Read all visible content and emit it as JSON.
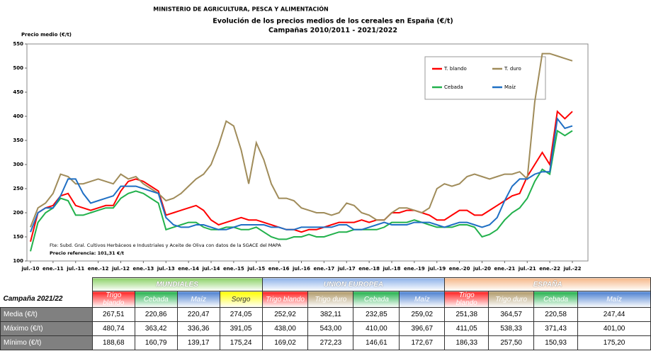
{
  "header": "MINISTERIO DE AGRICULTURA, PESCA Y ALIMENTACIÓN",
  "chart_data": {
    "type": "line",
    "title": "Evolución de los precios medios de los cereales en España (€/t)",
    "subtitle": "Campañas 2010/2011 - 2021/2022",
    "y_label": "Precio medio (€/t)",
    "annotations": [
      "Fte: Subd. Gral. Cultivos Herbáceos e Industriales y Aceite de Oliva con datos de la SGACE del MAPA",
      "Precio referencia: 101,31 €/t"
    ],
    "categories": [
      "jul.-10",
      null,
      null,
      "ene.-11",
      null,
      null,
      "jul.-11",
      null,
      null,
      "ene.-12",
      null,
      null,
      "jul.-12",
      null,
      null,
      "ene.-13",
      null,
      null,
      "jul.-13",
      null,
      null,
      "ene.-14",
      null,
      null,
      "jul.-14",
      null,
      null,
      "ene.-15",
      null,
      null,
      "jul.-15",
      null,
      null,
      "ene.-16",
      null,
      null,
      "jul.-16",
      null,
      null,
      "ene.-17",
      null,
      null,
      "jul.-17",
      null,
      null,
      "ene.-18",
      null,
      null,
      "jul.-18",
      null,
      null,
      "ene.-19",
      null,
      null,
      "jul.-19",
      null,
      null,
      "ene.-20",
      null,
      null,
      "jul.-20",
      null,
      null,
      "ene.-21",
      null,
      null,
      "jul.-21",
      null,
      null,
      "ene.-22",
      null,
      null,
      "jul.-22"
    ],
    "series": [
      {
        "name": "T. blando",
        "color": "#ff0000",
        "values": [
          140,
          200,
          210,
          215,
          235,
          240,
          215,
          210,
          205,
          210,
          215,
          215,
          245,
          265,
          270,
          265,
          255,
          245,
          195,
          200,
          205,
          210,
          215,
          205,
          185,
          175,
          180,
          185,
          190,
          185,
          185,
          180,
          175,
          170,
          165,
          165,
          160,
          165,
          165,
          170,
          175,
          180,
          180,
          180,
          185,
          180,
          185,
          185,
          200,
          200,
          205,
          205,
          200,
          195,
          185,
          185,
          195,
          205,
          205,
          195,
          195,
          205,
          215,
          225,
          235,
          240,
          275,
          300,
          325,
          300,
          410,
          395,
          410
        ]
      },
      {
        "name": "T. duro",
        "color": "#a08c5a",
        "values": [
          170,
          210,
          220,
          240,
          280,
          275,
          260,
          260,
          265,
          270,
          265,
          260,
          280,
          270,
          275,
          260,
          250,
          240,
          225,
          230,
          240,
          255,
          270,
          280,
          300,
          340,
          390,
          380,
          330,
          260,
          345,
          310,
          260,
          230,
          230,
          225,
          210,
          205,
          200,
          200,
          195,
          200,
          220,
          215,
          200,
          195,
          185,
          185,
          200,
          210,
          210,
          205,
          200,
          210,
          250,
          260,
          255,
          260,
          275,
          280,
          275,
          270,
          275,
          280,
          280,
          285,
          270,
          430,
          530,
          530,
          525,
          520,
          515
        ]
      },
      {
        "name": "Cebada",
        "color": "#22b14c",
        "values": [
          120,
          180,
          200,
          210,
          230,
          225,
          195,
          195,
          200,
          205,
          210,
          210,
          230,
          240,
          245,
          240,
          230,
          220,
          165,
          170,
          175,
          180,
          180,
          170,
          165,
          165,
          170,
          170,
          165,
          165,
          170,
          160,
          150,
          145,
          145,
          150,
          150,
          155,
          150,
          150,
          155,
          160,
          160,
          165,
          165,
          165,
          165,
          170,
          180,
          180,
          180,
          185,
          180,
          175,
          170,
          170,
          170,
          175,
          175,
          170,
          150,
          155,
          165,
          185,
          200,
          210,
          230,
          265,
          290,
          280,
          370,
          360,
          370
        ]
      },
      {
        "name": "Maíz",
        "color": "#1f6fc4",
        "values": [
          160,
          200,
          210,
          210,
          235,
          270,
          270,
          240,
          220,
          225,
          230,
          235,
          255,
          255,
          255,
          250,
          245,
          240,
          190,
          175,
          170,
          170,
          175,
          175,
          170,
          165,
          165,
          170,
          175,
          175,
          175,
          175,
          170,
          170,
          165,
          165,
          170,
          170,
          170,
          170,
          170,
          175,
          175,
          165,
          165,
          170,
          175,
          180,
          175,
          175,
          175,
          180,
          180,
          180,
          175,
          170,
          175,
          180,
          180,
          175,
          170,
          175,
          190,
          225,
          255,
          270,
          270,
          280,
          285,
          285,
          395,
          375,
          380
        ]
      }
    ],
    "ylim": [
      100,
      550
    ],
    "yticks": [
      100,
      150,
      200,
      250,
      300,
      350,
      400,
      450,
      500,
      550
    ],
    "legend": "upper right"
  },
  "table": {
    "groups": [
      "MUNDIALES",
      "UNION EUROPEA",
      "ESPAÑA"
    ],
    "corner": "Campaña 2021/22",
    "columns": [
      "Trigo blando",
      "Cebada",
      "Maíz",
      "Sorgo",
      "Trigo blando",
      "Trigo duro",
      "Cebada",
      "Maíz",
      "Trigo blando",
      "Trigo duro",
      "Cebada",
      "Maíz"
    ],
    "column_colors": [
      "#ff2020",
      "#22b14c",
      "#4a7fd0",
      "#ffff00",
      "#ff2020",
      "#b09a6a",
      "#22b14c",
      "#4a7fd0",
      "#ff2020",
      "#b09a6a",
      "#22b14c",
      "#4a7fd0"
    ],
    "group_colors": [
      "#8ed36a",
      "#8fb3ea",
      "#f6b98a"
    ],
    "rows": [
      {
        "label": "Media (€/t)",
        "cells": [
          "267,51",
          "220,86",
          "220,47",
          "274,05",
          "252,92",
          "382,11",
          "232,85",
          "259,02",
          "251,38",
          "364,57",
          "220,58",
          "247,44"
        ]
      },
      {
        "label": "Máximo (€/t)",
        "cells": [
          "480,74",
          "363,42",
          "336,36",
          "391,05",
          "438,00",
          "543,00",
          "410,00",
          "396,67",
          "411,05",
          "538,33",
          "371,43",
          "401,00"
        ]
      },
      {
        "label": "Mínimo (€/t)",
        "cells": [
          "188,68",
          "160,79",
          "139,17",
          "175,24",
          "169,02",
          "272,23",
          "146,61",
          "172,67",
          "186,33",
          "257,50",
          "150,93",
          "175,20"
        ]
      }
    ]
  }
}
